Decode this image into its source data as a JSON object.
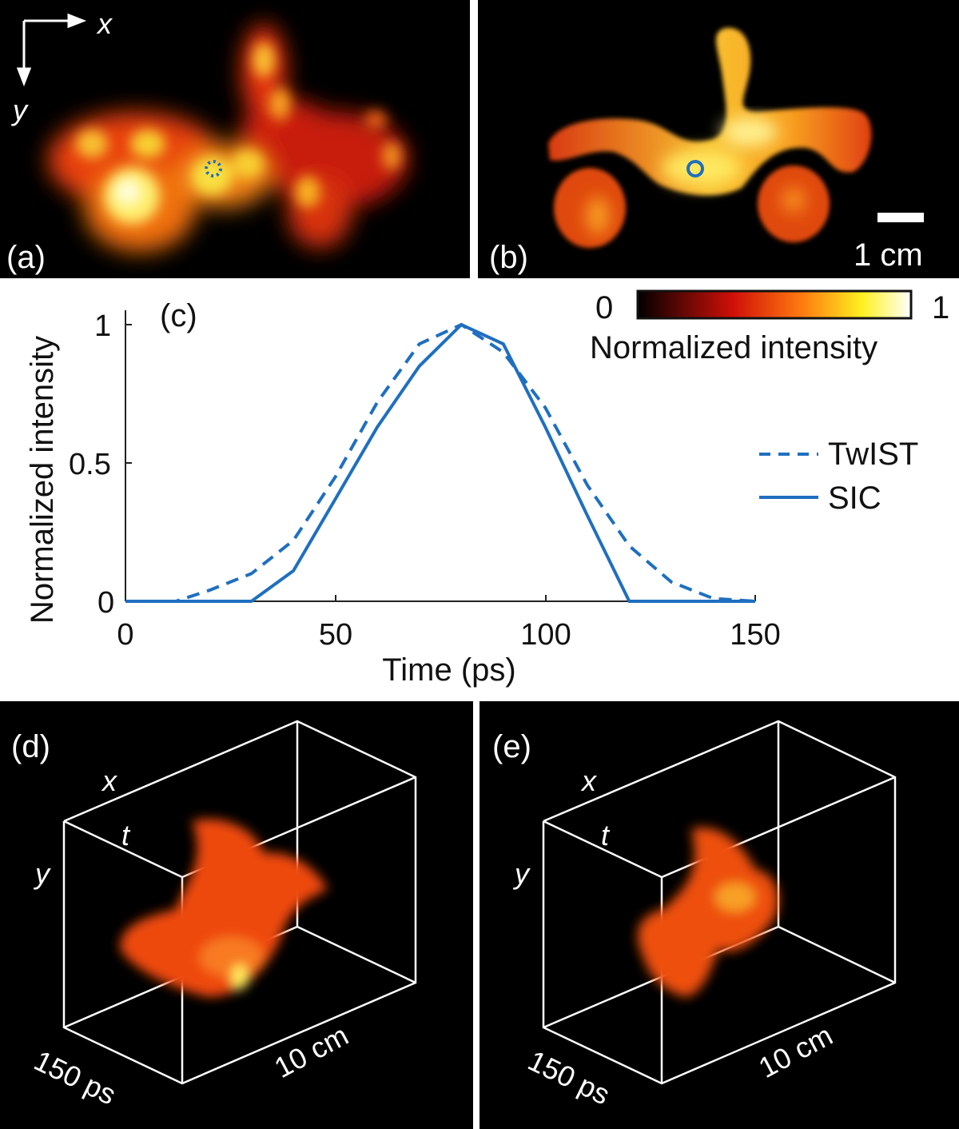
{
  "figure": {
    "panels": {
      "a": {
        "label": "(a)",
        "axis_x": "x",
        "axis_y": "y"
      },
      "b": {
        "label": "(b)",
        "scalebar": "1 cm"
      },
      "c": {
        "label": "(c)"
      },
      "d": {
        "label": "(d)",
        "axis_x": "x",
        "axis_t": "t",
        "axis_y": "y",
        "dim_time": "150 ps",
        "dim_space": "10 cm"
      },
      "e": {
        "label": "(e)",
        "axis_x": "x",
        "axis_t": "t",
        "axis_y": "y",
        "dim_time": "150 ps",
        "dim_space": "10 cm"
      }
    },
    "colorbar": {
      "min_label": "0",
      "max_label": "1",
      "title": "Normalized intensity",
      "colormap": "hot"
    },
    "colors": {
      "line": "#1f6fc0",
      "background_dark": "#000000",
      "axis": "#222222"
    }
  },
  "chart_data": {
    "type": "line",
    "title": "(c)",
    "xlabel": "Time (ps)",
    "ylabel": "Normalized intensity",
    "xlim": [
      0,
      150
    ],
    "ylim": [
      0,
      1
    ],
    "xticks": [
      "0",
      "50",
      "100",
      "150"
    ],
    "yticks": [
      "0",
      "0.5",
      "1"
    ],
    "grid": false,
    "legend_position": "right",
    "series": [
      {
        "name": "TwIST",
        "style": "dashed",
        "x": [
          0,
          12,
          20,
          30,
          40,
          50,
          60,
          70,
          80,
          90,
          100,
          110,
          120,
          130,
          140,
          150
        ],
        "values": [
          0,
          0,
          0.04,
          0.1,
          0.22,
          0.45,
          0.72,
          0.93,
          1.0,
          0.9,
          0.7,
          0.42,
          0.2,
          0.07,
          0.01,
          0
        ]
      },
      {
        "name": "SIC",
        "style": "solid",
        "x": [
          0,
          30,
          40,
          50,
          60,
          70,
          80,
          90,
          100,
          110,
          120,
          150
        ],
        "values": [
          0,
          0,
          0.11,
          0.37,
          0.63,
          0.85,
          1.0,
          0.93,
          0.63,
          0.31,
          0,
          0
        ]
      }
    ]
  }
}
